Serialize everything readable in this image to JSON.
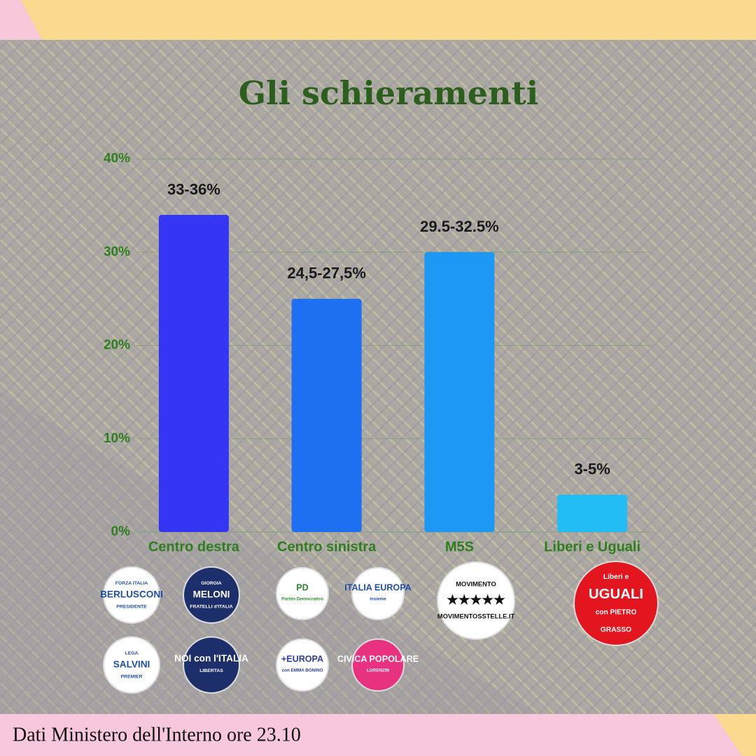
{
  "chart_data": {
    "type": "bar",
    "title": "Gli schieramenti",
    "categories": [
      "Centro destra",
      "Centro sinistra",
      "M5S",
      "Liberi e Uguali"
    ],
    "values": [
      34,
      25,
      30,
      4
    ],
    "value_labels": [
      "33-36%",
      "24,5-27,5%",
      "29.5-32.5%",
      "3-5%"
    ],
    "colors": [
      "#3535f5",
      "#1f6ff2",
      "#1e98f5",
      "#22bdf5"
    ],
    "ylim": [
      0,
      40
    ],
    "yticks": [
      {
        "value": 0,
        "label": "0%"
      },
      {
        "value": 10,
        "label": "10%"
      },
      {
        "value": 20,
        "label": "20%"
      },
      {
        "value": 30,
        "label": "30%"
      },
      {
        "value": 40,
        "label": "40%"
      }
    ],
    "grid": true
  },
  "logos": [
    {
      "lines": [
        "FORZA ITALIA",
        "BERLUSCONI",
        "PRESIDENTE"
      ],
      "fill": "#ffffff",
      "color": "#1f4fa8"
    },
    {
      "lines": [
        "GIORGIA",
        "MELONI",
        "FRATELLI d'ITALIA"
      ],
      "fill": "#1c2f6b",
      "color": "#ffffff"
    },
    {
      "lines": [
        "LEGA",
        "SALVINI",
        "PREMIER"
      ],
      "fill": "#ffffff",
      "color": "#1f4fa8"
    },
    {
      "lines": [
        "NOI con l'ITALIA",
        "LIBERTAS"
      ],
      "fill": "#1c2f6b",
      "color": "#ffffff"
    },
    {
      "lines": [
        "PD",
        "Partito Democratico"
      ],
      "fill": "#ffffff",
      "color": "#2a8a2a"
    },
    {
      "lines": [
        "ITALIA EUROPA",
        "insieme"
      ],
      "fill": "#ffffff",
      "color": "#1f4fa8"
    },
    {
      "lines": [
        "+EUROPA",
        "con EMMA BONINO"
      ],
      "fill": "#ffffff",
      "color": "#2b3f9a"
    },
    {
      "lines": [
        "CIVICA POPOLARE",
        "LORENZIN"
      ],
      "fill": "#e8327f",
      "color": "#ffffff"
    },
    {
      "lines": [
        "MOVIMENTO",
        "★★★★★",
        "MOVIMENTOSSTELLE.IT"
      ],
      "fill": "#ffffff",
      "color": "#111111"
    },
    {
      "lines": [
        "Liberi e",
        "UGUALI",
        "con PIETRO",
        "GRASSO"
      ],
      "fill": "#e3151f",
      "color": "#ffffff"
    }
  ],
  "footer": "Dati Ministero dell'Interno ore 23.10"
}
